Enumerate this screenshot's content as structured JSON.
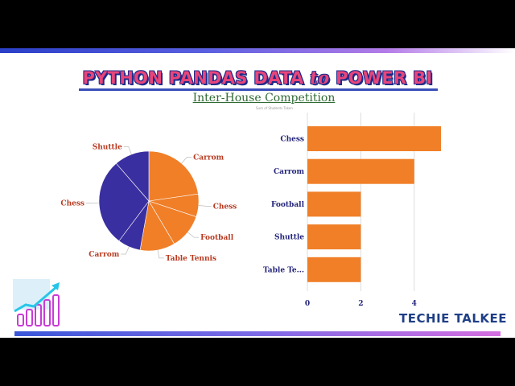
{
  "header": {
    "title_part1": "PYTHON PANDAS DATA ",
    "title_to": "to",
    "title_part2": " POWER BI",
    "subtitle": "Inter-House Competition",
    "tiny_caption": "Sum of Students Taken"
  },
  "brand": {
    "name": "TECHIE TALKEE"
  },
  "logo": {
    "icon": "growth-chart-icon"
  },
  "colors": {
    "slice_orange": "#F07F28",
    "slice_purple": "#3A2FA0",
    "bar": "#F07F28",
    "title_pink": "#E8457A",
    "title_outline": "#1E2A8A",
    "subtitle_green": "#2F6A33",
    "label_red": "#B83A20",
    "label_navy": "#22237A"
  },
  "chart_data": [
    {
      "type": "pie",
      "slices": [
        {
          "label": "Carrom",
          "value": 4,
          "color": "#F07F28"
        },
        {
          "label": "Chess",
          "value": 1.3,
          "color": "#F07F28"
        },
        {
          "label": "Football",
          "value": 2,
          "color": "#F07F28"
        },
        {
          "label": "Table Tennis",
          "value": 2,
          "color": "#F07F28"
        },
        {
          "label": "Carrom",
          "value": 1.3,
          "color": "#3A2FA0"
        },
        {
          "label": "Chess",
          "value": 5,
          "color": "#3A2FA0"
        },
        {
          "label": "Shuttle",
          "value": 2,
          "color": "#3A2FA0"
        }
      ],
      "start_angle_deg": 0,
      "direction": "clockwise"
    },
    {
      "type": "bar",
      "orientation": "horizontal",
      "categories": [
        "Chess",
        "Carrom",
        "Football",
        "Shuttle",
        "Table Te..."
      ],
      "values": [
        5,
        4,
        2,
        2,
        2
      ],
      "xlim": [
        0,
        5
      ],
      "xticks": [
        "0",
        "2",
        "4"
      ],
      "xtick_values": [
        0,
        2,
        4
      ],
      "grid": true
    }
  ]
}
